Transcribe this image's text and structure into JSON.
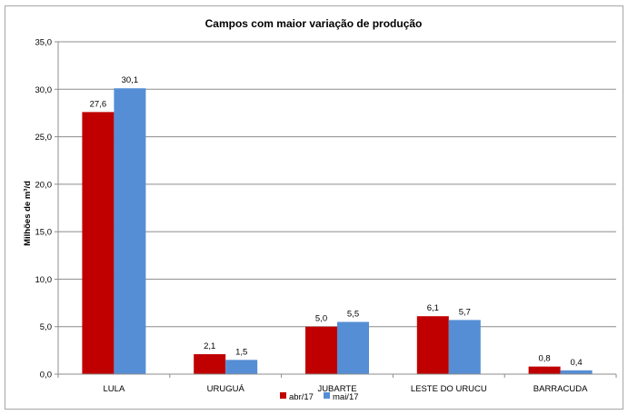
{
  "chart_data": {
    "type": "bar",
    "title": "Campos com maior variação de produção",
    "ylabel": "Milhões de m³/d",
    "xlabel": "",
    "categories": [
      "LULA",
      "URUGUÁ",
      "JUBARTE",
      "LESTE DO URUCU",
      "BARRACUDA"
    ],
    "series": [
      {
        "name": "abr/17",
        "values": [
          27.6,
          2.1,
          5.0,
          6.1,
          0.8
        ],
        "labels": [
          "27,6",
          "2,1",
          "5,0",
          "6,1",
          "0,8"
        ],
        "color": "#c00000"
      },
      {
        "name": "mai/17",
        "values": [
          30.1,
          1.5,
          5.5,
          5.7,
          0.4
        ],
        "labels": [
          "30,1",
          "1,5",
          "5,5",
          "5,7",
          "0,4"
        ],
        "color": "#558ed5"
      }
    ],
    "ylim": [
      0,
      35
    ],
    "yticks": [
      0,
      5,
      10,
      15,
      20,
      25,
      30,
      35
    ],
    "ytick_labels": [
      "0,0",
      "5,0",
      "10,0",
      "15,0",
      "20,0",
      "25,0",
      "30,0",
      "35,0"
    ],
    "grid": true,
    "legend_position": "bottom"
  }
}
